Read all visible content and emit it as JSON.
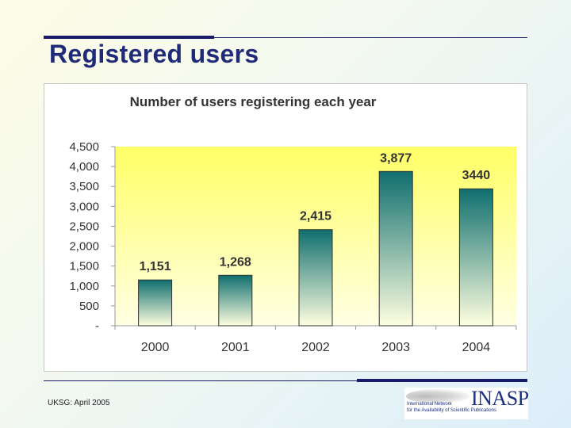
{
  "slide": {
    "title": "Registered users",
    "footer": "UKSG: April 2005"
  },
  "logo": {
    "name": "INASP",
    "tagline_line1": "International Network",
    "tagline_line2": "for the Availability of Scientific Publications"
  },
  "colors": {
    "title": "#1f2a78",
    "plot_area_top": "#ffff66",
    "plot_area_bottom": "#ffffe4",
    "bar_top": "#0f6e6e",
    "bar_bottom": "#ffffe0"
  },
  "chart_data": {
    "type": "bar",
    "title": "Number of users registering each year",
    "categories": [
      "2000",
      "2001",
      "2002",
      "2003",
      "2004"
    ],
    "values": [
      1151,
      1268,
      2415,
      3877,
      3440
    ],
    "value_labels": [
      "1,151",
      "1,268",
      "2,415",
      "3,877",
      "3440"
    ],
    "ylim": [
      0,
      4500
    ],
    "y_ticks": [
      0,
      500,
      1000,
      1500,
      2000,
      2500,
      3000,
      3500,
      4000,
      4500
    ],
    "y_tick_labels": [
      "-",
      "500",
      "1,000",
      "1,500",
      "2,000",
      "2,500",
      "3,000",
      "3,500",
      "4,000",
      "4,500"
    ],
    "xlabel": "",
    "ylabel": "",
    "grid": false,
    "legend": "none"
  }
}
